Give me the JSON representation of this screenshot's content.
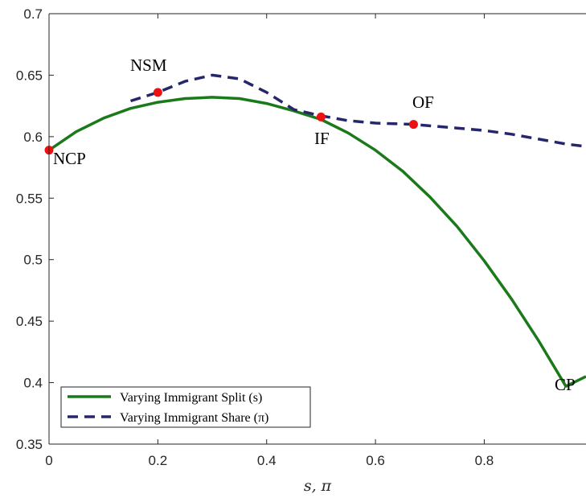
{
  "chart_data": {
    "type": "line",
    "title": "",
    "xlabel": "s, π",
    "ylabel": "",
    "xlim": [
      0,
      0.987
    ],
    "ylim": [
      0.35,
      0.7
    ],
    "xticks": [
      0,
      0.2,
      0.4,
      0.6,
      0.8
    ],
    "xtick_labels": [
      "0",
      "0.2",
      "0.4",
      "0.6",
      "0.8"
    ],
    "yticks": [
      0.35,
      0.4,
      0.45,
      0.5,
      0.55,
      0.6,
      0.65,
      0.7
    ],
    "ytick_labels": [
      "0.35",
      "0.4",
      "0.45",
      "0.5",
      "0.55",
      "0.6",
      "0.65",
      "0.7"
    ],
    "grid": false,
    "legend_position": "bottom-left",
    "colors": {
      "series_1": "#1a7a1a",
      "series_2": "#26276b",
      "points": "#ee1111"
    },
    "series": [
      {
        "name": "Varying Immigrant Split (s)",
        "style": "solid",
        "x": [
          0,
          0.05,
          0.1,
          0.15,
          0.2,
          0.25,
          0.3,
          0.35,
          0.4,
          0.45,
          0.5,
          0.55,
          0.6,
          0.65,
          0.7,
          0.75,
          0.8,
          0.85,
          0.9,
          0.95,
          0.987
        ],
        "y": [
          0.589,
          0.604,
          0.615,
          0.623,
          0.628,
          0.631,
          0.632,
          0.631,
          0.627,
          0.621,
          0.614,
          0.603,
          0.589,
          0.572,
          0.551,
          0.527,
          0.499,
          0.468,
          0.434,
          0.397,
          0.405
        ]
      },
      {
        "name": "Varying Immigrant Share (π)",
        "style": "dashed",
        "x": [
          0.15,
          0.2,
          0.25,
          0.3,
          0.35,
          0.4,
          0.45,
          0.5,
          0.55,
          0.6,
          0.67,
          0.75,
          0.8,
          0.85,
          0.9,
          0.95,
          0.987
        ],
        "y": [
          0.629,
          0.636,
          0.645,
          0.65,
          0.647,
          0.636,
          0.622,
          0.617,
          0.613,
          0.611,
          0.61,
          0.607,
          0.605,
          0.602,
          0.598,
          0.594,
          0.592
        ]
      }
    ],
    "points": [
      {
        "label": "NCP",
        "x": 0.0,
        "y": 0.589
      },
      {
        "label": "NSM",
        "x": 0.2,
        "y": 0.636
      },
      {
        "label": "IF",
        "x": 0.5,
        "y": 0.616
      },
      {
        "label": "OF",
        "x": 0.67,
        "y": 0.61
      }
    ],
    "annotations": [
      "NCP",
      "NSM",
      "IF",
      "OF",
      "CP"
    ]
  }
}
